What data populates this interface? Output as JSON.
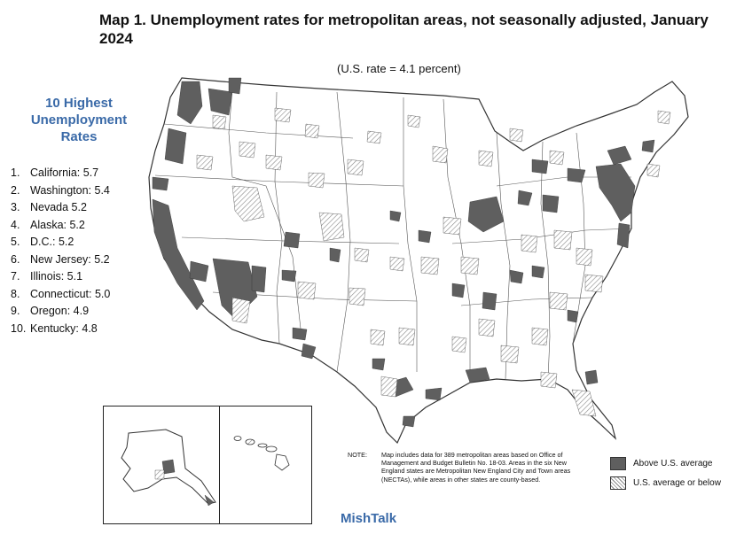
{
  "title": "Map 1. Unemployment rates for metropolitan areas, not seasonally adjusted, January 2024",
  "us_rate_note": "(U.S. rate = 4.1 percent)",
  "sidebar": {
    "title": "10 Highest Unemployment Rates",
    "items": [
      {
        "rank": "1.",
        "label": "California: 5.7"
      },
      {
        "rank": "2.",
        "label": "Washington: 5.4"
      },
      {
        "rank": "3.",
        "label": "Nevada 5.2"
      },
      {
        "rank": "4.",
        "label": "Alaska: 5.2"
      },
      {
        "rank": "5.",
        "label": "D.C.: 5.2"
      },
      {
        "rank": "6.",
        "label": "New Jersey: 5.2"
      },
      {
        "rank": "7.",
        "label": "Illinois: 5.1"
      },
      {
        "rank": "8.",
        "label": "Connecticut: 5.0"
      },
      {
        "rank": "9.",
        "label": "Oregon: 4.9"
      },
      {
        "rank": "10.",
        "label": "Kentucky: 4.8"
      }
    ]
  },
  "note": {
    "label": "NOTE:",
    "text": "Map includes data for 389 metropolitan areas based on Office of Management and Budget Bulletin No. 18-03. Areas in the six New England states are Metropolitan New England City and Town areas (NECTAs), while areas in other states are county-based."
  },
  "legend": {
    "items": [
      {
        "label": "Above U.S. average",
        "color": "#5f5f5f"
      },
      {
        "label": "U.S. average or below",
        "pattern": "hatched"
      }
    ]
  },
  "brand": "MishTalk",
  "colors": {
    "accent": "#3a6aa8",
    "above": "#5f5f5f",
    "hatch": "#888888"
  }
}
